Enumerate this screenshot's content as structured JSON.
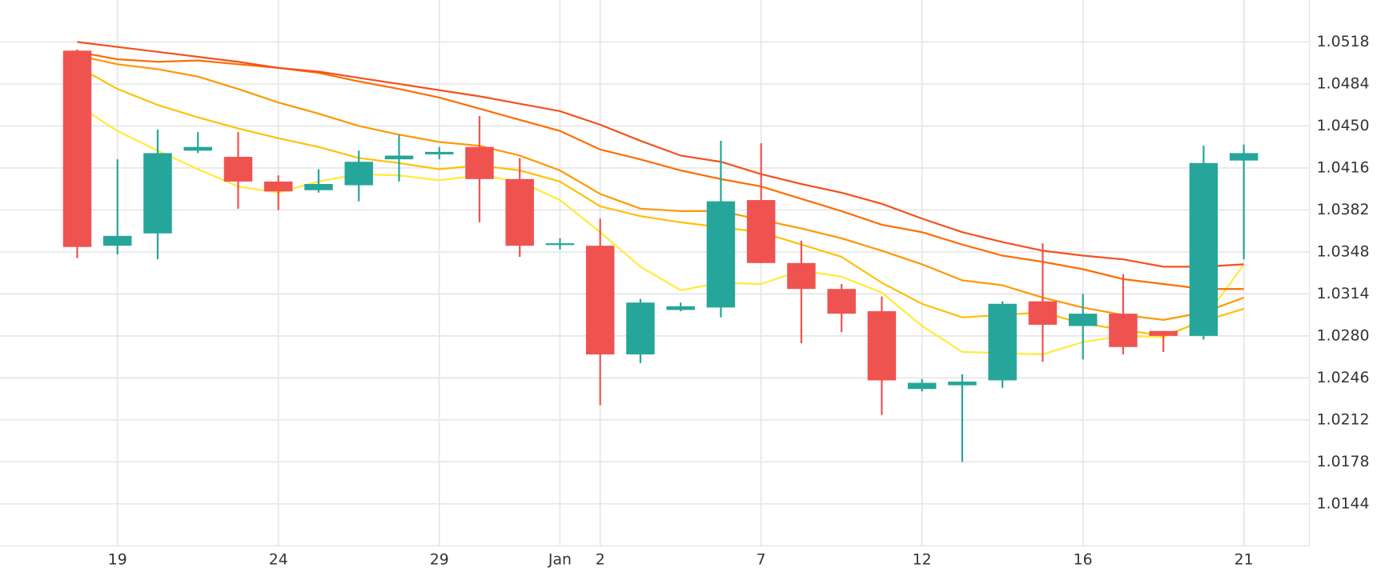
{
  "chart_data": {
    "type": "candlestick",
    "categories": [
      null,
      "19",
      null,
      null,
      null,
      "24",
      null,
      null,
      null,
      "29",
      null,
      null,
      "Jan",
      "2",
      null,
      null,
      null,
      "7",
      null,
      null,
      null,
      "12",
      null,
      null,
      null,
      "16",
      null,
      null,
      null,
      "21"
    ],
    "open": [
      1.0511,
      1.0353,
      1.0363,
      1.043,
      1.0425,
      1.0405,
      1.0398,
      1.0402,
      1.0423,
      1.0427,
      1.0433,
      1.0407,
      1.0354,
      1.0353,
      1.0265,
      1.0301,
      1.0303,
      1.039,
      1.0339,
      1.0318,
      1.03,
      1.0237,
      1.024,
      1.0244,
      1.0308,
      1.0288,
      1.0298,
      1.0284,
      1.028,
      1.0422
    ],
    "high": [
      1.0512,
      1.0423,
      1.0447,
      1.0445,
      1.0445,
      1.041,
      1.0415,
      1.043,
      1.0443,
      1.0433,
      1.0458,
      1.0424,
      1.0359,
      1.0375,
      1.031,
      1.0307,
      1.0438,
      1.0436,
      1.0357,
      1.0322,
      1.0312,
      1.0245,
      1.0249,
      1.0308,
      1.0355,
      1.0314,
      1.033,
      1.0284,
      1.0434,
      1.0435
    ],
    "low": [
      1.0343,
      1.0346,
      1.0342,
      1.0428,
      1.0383,
      1.0382,
      1.0396,
      1.0389,
      1.0405,
      1.0423,
      1.0372,
      1.0344,
      1.035,
      1.0224,
      1.0258,
      1.03,
      1.0295,
      1.0339,
      1.0274,
      1.0283,
      1.0216,
      1.0235,
      1.0178,
      1.0238,
      1.0259,
      1.0261,
      1.0265,
      1.0267,
      1.0277,
      1.0342
    ],
    "close": [
      1.0352,
      1.0361,
      1.0428,
      1.0433,
      1.0405,
      1.0397,
      1.0403,
      1.0421,
      1.0426,
      1.0429,
      1.0407,
      1.0353,
      1.0355,
      1.0265,
      1.0307,
      1.0304,
      1.0389,
      1.0339,
      1.0318,
      1.0298,
      1.0244,
      1.0242,
      1.0243,
      1.0306,
      1.0289,
      1.0298,
      1.0271,
      1.028,
      1.042,
      1.0428
    ],
    "up_color": "#26a69a",
    "down_color": "#ef5350",
    "lines": [
      {
        "color": "#ffeb3b",
        "values": [
          1.0467,
          1.0446,
          1.043,
          1.0415,
          1.0401,
          1.0396,
          1.0405,
          1.0411,
          1.041,
          1.0406,
          1.041,
          1.0405,
          1.039,
          1.0364,
          1.0336,
          1.0317,
          1.0323,
          1.0322,
          1.0333,
          1.0328,
          1.0315,
          1.0288,
          1.0267,
          1.0266,
          1.0265,
          1.0275,
          1.028,
          1.0279,
          1.0293,
          1.0338
        ]
      },
      {
        "color": "#ffc107",
        "values": [
          1.0498,
          1.048,
          1.0467,
          1.0457,
          1.0448,
          1.044,
          1.0433,
          1.0424,
          1.042,
          1.0415,
          1.0418,
          1.0414,
          1.0405,
          1.0385,
          1.0377,
          1.0372,
          1.0368,
          1.0364,
          1.0354,
          1.0344,
          1.0323,
          1.0306,
          1.0295,
          1.0297,
          1.0299,
          1.029,
          1.0285,
          1.028,
          1.0292,
          1.0302
        ]
      },
      {
        "color": "#ff9800",
        "values": [
          1.0507,
          1.05,
          1.0496,
          1.049,
          1.048,
          1.0469,
          1.046,
          1.045,
          1.0443,
          1.0437,
          1.0434,
          1.0426,
          1.0414,
          1.0395,
          1.0383,
          1.0381,
          1.0381,
          1.0374,
          1.0367,
          1.0359,
          1.0349,
          1.0338,
          1.0325,
          1.0321,
          1.0311,
          1.0303,
          1.0297,
          1.0293,
          1.0299,
          1.0311
        ]
      },
      {
        "color": "#ff6d00",
        "values": [
          1.051,
          1.0504,
          1.0502,
          1.0503,
          1.05,
          1.0497,
          1.0493,
          1.0486,
          1.048,
          1.0473,
          1.0464,
          1.0455,
          1.0446,
          1.0431,
          1.0423,
          1.0414,
          1.0407,
          1.0401,
          1.0391,
          1.0381,
          1.037,
          1.0364,
          1.0354,
          1.0345,
          1.034,
          1.0334,
          1.0326,
          1.0322,
          1.0318,
          1.0318
        ]
      },
      {
        "color": "#f4511e",
        "values": [
          1.0518,
          1.0514,
          1.051,
          1.0506,
          1.0502,
          1.0497,
          1.0494,
          1.0489,
          1.0484,
          1.0479,
          1.0474,
          1.0468,
          1.0462,
          1.0451,
          1.0438,
          1.0426,
          1.0421,
          1.0411,
          1.0403,
          1.0396,
          1.0387,
          1.0375,
          1.0364,
          1.0356,
          1.0349,
          1.0345,
          1.0342,
          1.0336,
          1.0336,
          1.0338
        ]
      }
    ],
    "ylim": [
      1.011,
      1.0552
    ],
    "yticks": [
      1.0144,
      1.0178,
      1.0212,
      1.0246,
      {
        "value": 1.028,
        "label": "1.0280"
      },
      1.0314,
      1.0348,
      1.0382,
      1.0416,
      {
        "value": 1.045,
        "label": "1.0450"
      },
      1.0484,
      1.0518
    ],
    "grid": true
  }
}
